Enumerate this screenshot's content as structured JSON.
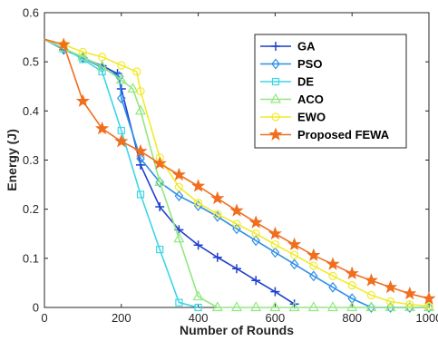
{
  "chart_data": {
    "type": "line",
    "title": "",
    "xlabel": "Number of Rounds",
    "ylabel": "Energy (J)",
    "xlim": [
      0,
      1000
    ],
    "ylim": [
      0,
      0.6
    ],
    "xticks": [
      0,
      200,
      400,
      600,
      800,
      1000
    ],
    "yticks": [
      0,
      0.1,
      0.2,
      0.3,
      0.4,
      0.5,
      0.6
    ],
    "xtick_labels": [
      "0",
      "200",
      "400",
      "600",
      "800",
      "1000"
    ],
    "ytick_labels": [
      "0",
      "0.1",
      "0.2",
      "0.3",
      "0.4",
      "0.5",
      "0.6"
    ],
    "grid": false,
    "legend_position": "top-right",
    "series": [
      {
        "name": "GA",
        "color": "#1f3fcc",
        "marker": "plus",
        "x": [
          0,
          50,
          100,
          150,
          190,
          200,
          250,
          300,
          350,
          400,
          450,
          500,
          550,
          600,
          650
        ],
        "y": [
          0.546,
          0.525,
          0.508,
          0.492,
          0.476,
          0.445,
          0.29,
          0.205,
          0.158,
          0.127,
          0.102,
          0.079,
          0.055,
          0.032,
          0.007
        ]
      },
      {
        "name": "PSO",
        "color": "#2e8ee6",
        "marker": "diamond",
        "x": [
          0,
          50,
          100,
          150,
          195,
          200,
          250,
          300,
          350,
          400,
          450,
          500,
          550,
          600,
          650,
          700,
          750,
          800,
          850,
          900,
          950,
          1000
        ],
        "y": [
          0.546,
          0.525,
          0.508,
          0.488,
          0.47,
          0.426,
          0.303,
          0.255,
          0.227,
          0.207,
          0.185,
          0.16,
          0.136,
          0.112,
          0.088,
          0.064,
          0.041,
          0.018,
          0.0,
          0.0,
          0.0,
          0.0
        ]
      },
      {
        "name": "DE",
        "color": "#3dd6e6",
        "marker": "square",
        "x": [
          0,
          50,
          100,
          150,
          200,
          250,
          300,
          350,
          400
        ],
        "y": [
          0.546,
          0.528,
          0.505,
          0.48,
          0.36,
          0.23,
          0.118,
          0.01,
          0.0
        ]
      },
      {
        "name": "ACO",
        "color": "#90e880",
        "marker": "triangle",
        "x": [
          0,
          50,
          100,
          150,
          200,
          230,
          250,
          300,
          350,
          400,
          450,
          500,
          550,
          600,
          650,
          700,
          750,
          800,
          850,
          900,
          950,
          1000
        ],
        "y": [
          0.546,
          0.527,
          0.51,
          0.49,
          0.463,
          0.445,
          0.4,
          0.255,
          0.14,
          0.022,
          0.0,
          0.0,
          0.0,
          0.0,
          0.0,
          0.0,
          0.0,
          0.0,
          0.0,
          0.0,
          0.0,
          0.0
        ]
      },
      {
        "name": "EWO",
        "color": "#f2ea2a",
        "marker": "circle",
        "x": [
          0,
          50,
          100,
          150,
          200,
          240,
          250,
          300,
          350,
          400,
          450,
          500,
          550,
          600,
          650,
          700,
          750,
          800,
          850,
          900,
          950,
          1000
        ],
        "y": [
          0.546,
          0.535,
          0.52,
          0.51,
          0.493,
          0.48,
          0.44,
          0.305,
          0.245,
          0.213,
          0.19,
          0.17,
          0.15,
          0.128,
          0.107,
          0.085,
          0.064,
          0.045,
          0.025,
          0.012,
          0.006,
          0.003
        ]
      },
      {
        "name": "Proposed FEWA",
        "color": "#f06e1e",
        "marker": "star",
        "x": [
          0,
          50,
          100,
          150,
          200,
          250,
          300,
          350,
          400,
          450,
          500,
          550,
          600,
          650,
          700,
          750,
          800,
          850,
          900,
          950,
          1000
        ],
        "y": [
          0.546,
          0.535,
          0.42,
          0.364,
          0.338,
          0.318,
          0.293,
          0.27,
          0.247,
          0.222,
          0.197,
          0.173,
          0.15,
          0.128,
          0.106,
          0.088,
          0.069,
          0.055,
          0.041,
          0.028,
          0.018
        ]
      }
    ]
  }
}
